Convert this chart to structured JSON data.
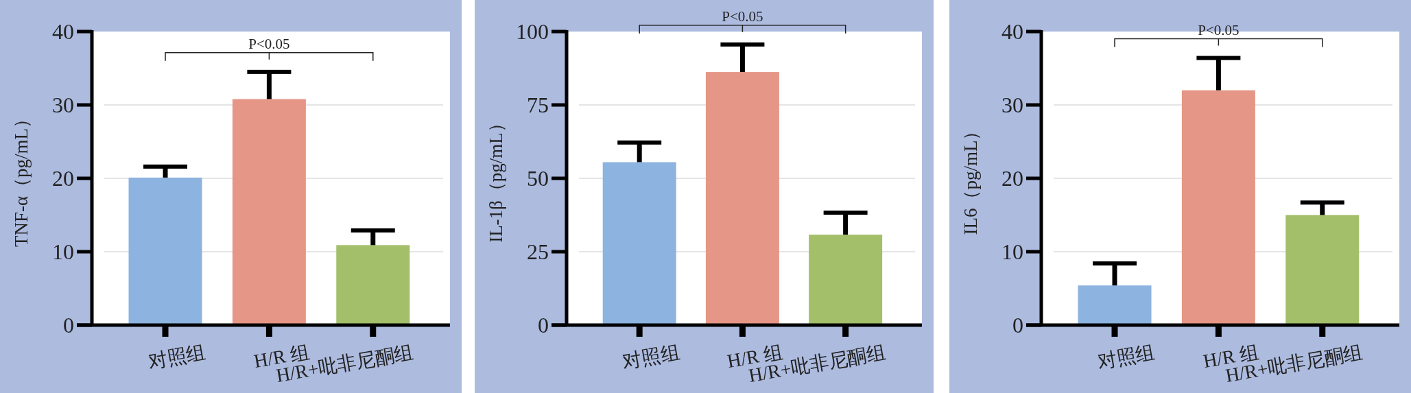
{
  "chart_data": [
    {
      "type": "bar",
      "categories": [
        "对照组",
        "H/R 组",
        "H/R+吡非尼酮组"
      ],
      "values": [
        20.1,
        30.8,
        10.9
      ],
      "colors": [
        "#8db3e0",
        "#e69686",
        "#a3bf6a"
      ],
      "errors": [
        [
          20.1,
          21.6
        ],
        [
          30.8,
          34.5
        ],
        [
          10.9,
          12.9
        ]
      ],
      "ylabel": "TNF-α（pg/mL）",
      "ylim": [
        0,
        40
      ],
      "yticks": [
        0,
        10,
        20,
        30,
        40
      ],
      "grid": "y",
      "annotations": [
        "P<0.05"
      ]
    },
    {
      "type": "bar",
      "categories": [
        "对照组",
        "H/R 组",
        "H/R+吡非尼酮组"
      ],
      "values": [
        55.5,
        86.2,
        30.8
      ],
      "colors": [
        "#8db3e0",
        "#e69686",
        "#a3bf6a"
      ],
      "errors": [
        [
          55.5,
          62.2
        ],
        [
          86.2,
          95.6
        ],
        [
          30.8,
          38.3
        ]
      ],
      "ylabel": "IL-1β（pg/mL）",
      "ylim": [
        0,
        100
      ],
      "yticks": [
        0,
        25,
        50,
        75,
        100
      ],
      "grid": "y",
      "annotations": [
        "P<0.05"
      ]
    },
    {
      "type": "bar",
      "categories": [
        "对照组",
        "H/R 组",
        "H/R+吡非尼酮组"
      ],
      "values": [
        5.4,
        32.0,
        15.0
      ],
      "colors": [
        "#8db3e0",
        "#e69686",
        "#a3bf6a"
      ],
      "errors": [
        [
          5.4,
          8.4
        ],
        [
          32.0,
          36.4
        ],
        [
          15.0,
          16.7
        ]
      ],
      "ylabel": "IL6（pg/mL）",
      "ylim": [
        0,
        40
      ],
      "yticks": [
        0,
        10,
        20,
        30,
        40
      ],
      "grid": "y",
      "annotations": [
        "P<0.05"
      ]
    }
  ]
}
